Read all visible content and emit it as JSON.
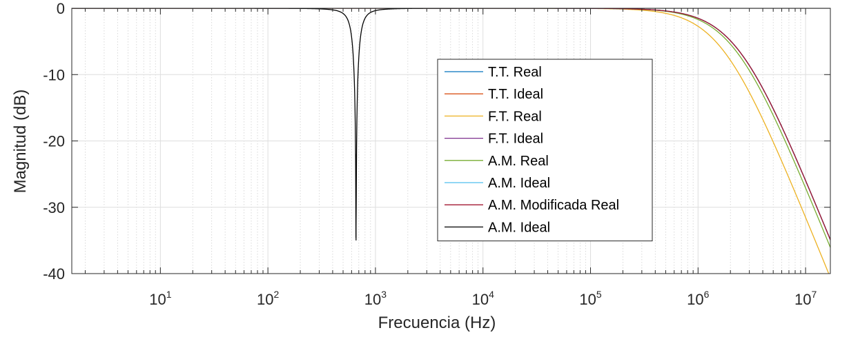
{
  "chart_data": {
    "type": "line",
    "xlabel": "Frecuencia (Hz)",
    "ylabel": "Magnitud (dB)",
    "xscale": "log",
    "xlim": [
      1.5,
      17000000
    ],
    "ylim": [
      -40,
      0
    ],
    "grid": true,
    "legend_location": "center-right",
    "x_ticks": [
      {
        "base": "10",
        "exp": "1"
      },
      {
        "base": "10",
        "exp": "2"
      },
      {
        "base": "10",
        "exp": "3"
      },
      {
        "base": "10",
        "exp": "4"
      },
      {
        "base": "10",
        "exp": "5"
      },
      {
        "base": "10",
        "exp": "6"
      },
      {
        "base": "10",
        "exp": "7"
      }
    ],
    "y_ticks": [
      "0",
      "-10",
      "-20",
      "-30",
      "-40"
    ],
    "series": [
      {
        "name": "T.T. Real",
        "color": "#0072BD",
        "type": "lowpass",
        "fc": 2300000,
        "order": 2
      },
      {
        "name": "T.T. Ideal",
        "color": "#D95319",
        "type": "lowpass",
        "fc": 2300000,
        "order": 2
      },
      {
        "name": "F.T. Real",
        "color": "#EDB120",
        "type": "lowpass",
        "fc": 1650000,
        "order": 2
      },
      {
        "name": "F.T. Ideal",
        "color": "#7E2F8E",
        "type": "lowpass",
        "fc": 2300000,
        "order": 2
      },
      {
        "name": "A.M. Real",
        "color": "#77AC30",
        "type": "lowpass",
        "fc": 2150000,
        "order": 2
      },
      {
        "name": "A.M. Ideal",
        "color": "#4DBEEE",
        "type": "lowpass",
        "fc": 2300000,
        "order": 2
      },
      {
        "name": "A.M. Modificada Real",
        "color": "#A2142F",
        "type": "lowpass",
        "fc": 2300000,
        "order": 2
      },
      {
        "name": "A.M. Ideal",
        "color": "#000000",
        "type": "notch",
        "f0": 660,
        "Q": 4,
        "min_db": -35
      }
    ]
  }
}
